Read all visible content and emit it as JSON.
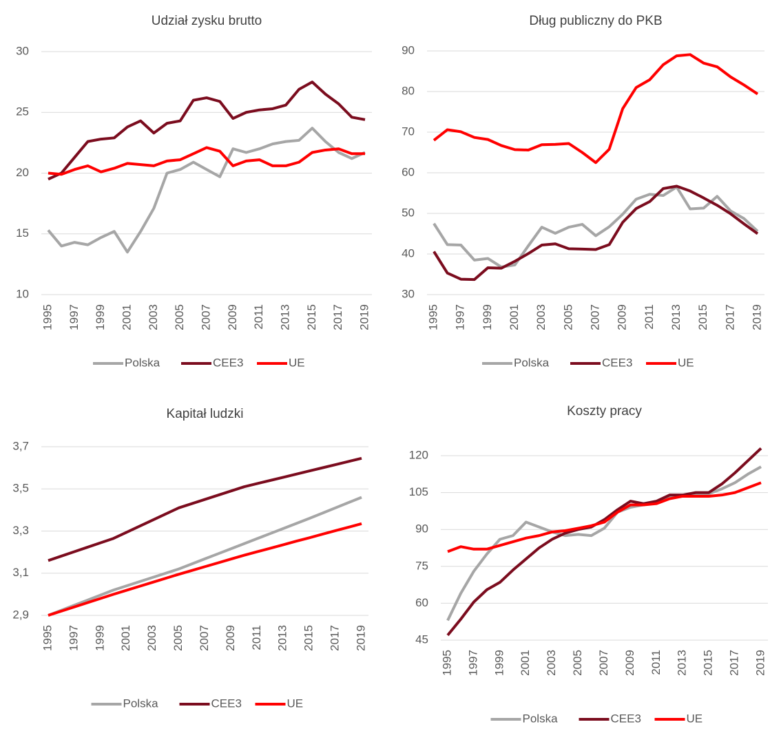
{
  "chart_data": [
    {
      "type": "line",
      "title": "Udział zysku brutto",
      "categories": [
        "1995",
        null,
        "1997",
        null,
        "1999",
        null,
        "2001",
        null,
        "2003",
        null,
        "2005",
        null,
        "2007",
        null,
        "2009",
        null,
        "2011",
        null,
        "2013",
        null,
        "2015",
        null,
        "2017",
        null,
        "2019"
      ],
      "series": [
        {
          "name": "Polska",
          "color": "#a6a6a6",
          "values": [
            15.3,
            14.0,
            14.3,
            14.1,
            14.7,
            15.2,
            13.5,
            15.2,
            17.1,
            20.0,
            20.3,
            20.9,
            20.3,
            19.7,
            22.0,
            21.7,
            22.0,
            22.4,
            22.6,
            22.7,
            23.7,
            22.6,
            21.7,
            21.2,
            21.7
          ]
        },
        {
          "name": "CEE3",
          "color": "#7b0c1e",
          "values": [
            19.5,
            20.0,
            21.3,
            22.6,
            22.8,
            22.9,
            23.8,
            24.3,
            23.3,
            24.1,
            24.3,
            26.0,
            26.2,
            25.9,
            24.5,
            25.0,
            25.2,
            25.3,
            25.6,
            26.9,
            27.5,
            26.5,
            25.7,
            24.6,
            24.4
          ]
        },
        {
          "name": "UE",
          "color": "#ff0000",
          "values": [
            20.0,
            19.9,
            20.3,
            20.6,
            20.1,
            20.4,
            20.8,
            20.7,
            20.6,
            21.0,
            21.1,
            21.6,
            22.1,
            21.8,
            20.6,
            21.0,
            21.1,
            20.6,
            20.6,
            20.9,
            21.7,
            21.9,
            22.0,
            21.6,
            21.6
          ]
        }
      ],
      "ylim": [
        10,
        30
      ],
      "yticks": [
        10,
        15,
        20,
        25,
        30
      ],
      "grid": true,
      "legend": "bottom"
    },
    {
      "type": "line",
      "title": "Dług publiczny do PKB",
      "categories": [
        "1995",
        null,
        "1997",
        null,
        "1999",
        null,
        "2001",
        null,
        "2003",
        null,
        "2005",
        null,
        "2007",
        null,
        "2009",
        null,
        "2011",
        null,
        "2013",
        null,
        "2015",
        null,
        "2017",
        null,
        "2019"
      ],
      "series": [
        {
          "name": "Polska",
          "color": "#a6a6a6",
          "values": [
            47.5,
            42.3,
            42.2,
            38.5,
            38.9,
            36.8,
            37.3,
            42.0,
            46.6,
            45.1,
            46.6,
            47.3,
            44.5,
            46.7,
            49.8,
            53.5,
            54.7,
            54.4,
            56.5,
            51.1,
            51.3,
            54.2,
            50.6,
            48.7,
            45.6
          ]
        },
        {
          "name": "CEE3",
          "color": "#7b0c1e",
          "values": [
            40.6,
            35.3,
            33.8,
            33.7,
            36.6,
            36.5,
            38.2,
            40.1,
            42.2,
            42.5,
            41.3,
            41.2,
            41.1,
            42.3,
            47.8,
            51.2,
            52.9,
            56.1,
            56.7,
            55.5,
            53.8,
            52.0,
            49.9,
            47.4,
            45.0
          ]
        },
        {
          "name": "UE",
          "color": "#ff0000",
          "values": [
            68.0,
            70.6,
            70.1,
            68.7,
            68.2,
            66.7,
            65.7,
            65.6,
            66.9,
            67.0,
            67.2,
            65.0,
            62.5,
            65.8,
            75.8,
            81.0,
            82.9,
            86.6,
            88.8,
            89.1,
            87.0,
            86.1,
            83.6,
            81.6,
            79.4
          ]
        }
      ],
      "ylim": [
        30,
        90
      ],
      "yticks": [
        30,
        40,
        50,
        60,
        70,
        80,
        90
      ],
      "grid": true,
      "legend": "bottom"
    },
    {
      "type": "line",
      "title": "Kapitał ludzki",
      "categories": [
        "1995",
        null,
        "1997",
        null,
        "1999",
        null,
        "2001",
        null,
        "2003",
        null,
        "2005",
        null,
        "2007",
        null,
        "2009",
        null,
        "2011",
        null,
        "2013",
        null,
        "2015",
        null,
        "2017",
        null,
        "2019"
      ],
      "series": [
        {
          "name": "Polska",
          "color": "#a6a6a6",
          "values": [
            2.9,
            2.924,
            2.948,
            2.972,
            2.996,
            3.02,
            3.04,
            3.06,
            3.08,
            3.1,
            3.12,
            3.144,
            3.168,
            3.192,
            3.216,
            3.24,
            3.264,
            3.288,
            3.312,
            3.336,
            3.36,
            3.385,
            3.41,
            3.435,
            3.46
          ]
        },
        {
          "name": "CEE3",
          "color": "#7b0c1e",
          "values": [
            3.16,
            3.181,
            3.202,
            3.223,
            3.244,
            3.265,
            3.294,
            3.323,
            3.352,
            3.381,
            3.41,
            3.43,
            3.45,
            3.47,
            3.49,
            3.51,
            3.525,
            3.54,
            3.555,
            3.57,
            3.585,
            3.6,
            3.615,
            3.63,
            3.645
          ]
        },
        {
          "name": "UE",
          "color": "#ff0000",
          "values": [
            2.9,
            2.92,
            2.94,
            2.96,
            2.98,
            3.0,
            3.019,
            3.038,
            3.057,
            3.076,
            3.095,
            3.113,
            3.131,
            3.149,
            3.167,
            3.185,
            3.202,
            3.218,
            3.235,
            3.252,
            3.268,
            3.285,
            3.302,
            3.318,
            3.335
          ]
        }
      ],
      "ylim": [
        2.9,
        3.7
      ],
      "yticks": [
        {
          "value": 2.9,
          "label": "2,9"
        },
        {
          "value": 3.1,
          "label": "3,1"
        },
        {
          "value": 3.3,
          "label": "3,3"
        },
        {
          "value": 3.5,
          "label": "3,5"
        },
        {
          "value": 3.7,
          "label": "3,7"
        }
      ],
      "grid": true,
      "legend": "bottom"
    },
    {
      "type": "line",
      "title": "Koszty pracy",
      "categories": [
        "1995",
        null,
        "1997",
        null,
        "1999",
        null,
        "2001",
        null,
        "2003",
        null,
        "2005",
        null,
        "2007",
        null,
        "2009",
        null,
        "2011",
        null,
        "2013",
        null,
        "2015",
        null,
        "2017",
        null,
        "2019"
      ],
      "series": [
        {
          "name": "Polska",
          "color": "#a6a6a6",
          "values": [
            53,
            64,
            73,
            80,
            86,
            87.5,
            93,
            91,
            89,
            87.5,
            88,
            87.5,
            90.5,
            97,
            99,
            100,
            101,
            103,
            104,
            104.5,
            104.5,
            106.5,
            109,
            112.5,
            115.5
          ]
        },
        {
          "name": "CEE3",
          "color": "#7b0c1e",
          "values": [
            47,
            53.5,
            60.5,
            65.5,
            68.5,
            73.5,
            78,
            82.5,
            86,
            88.5,
            90,
            91,
            94,
            98,
            101.5,
            100.5,
            101.5,
            104,
            104,
            105,
            105,
            108.5,
            113,
            118,
            123
          ]
        },
        {
          "name": "UE",
          "color": "#ff0000",
          "values": [
            81,
            83,
            82,
            82,
            83.5,
            85,
            86.5,
            87.5,
            89,
            89.5,
            90.5,
            91.5,
            93,
            97,
            100,
            100,
            100.5,
            102.5,
            103.5,
            103.5,
            103.5,
            104,
            105,
            107,
            109
          ]
        }
      ],
      "ylim": [
        45,
        120
      ],
      "yticks": [
        45,
        60,
        75,
        90,
        105,
        120
      ],
      "grid": true,
      "legend": "bottom"
    }
  ]
}
